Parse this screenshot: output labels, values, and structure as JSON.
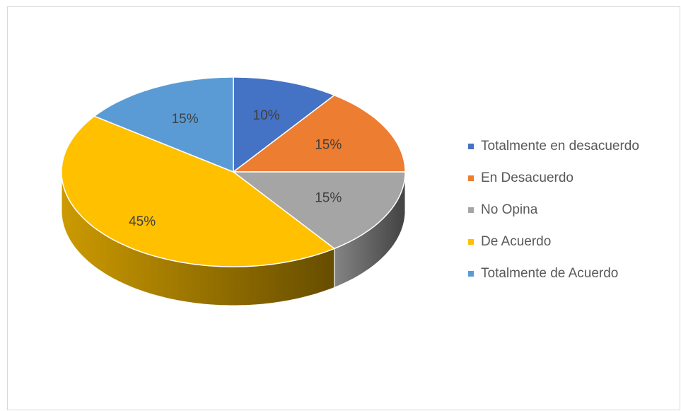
{
  "chart_data": {
    "type": "pie",
    "categories": [
      "Totalmente en desacuerdo",
      "En Desacuerdo",
      "No Opina",
      "De Acuerdo",
      "Totalmente de Acuerdo"
    ],
    "values": [
      10,
      15,
      15,
      45,
      15
    ],
    "value_labels": [
      "10%",
      "15%",
      "15%",
      "45%",
      "15%"
    ],
    "colors": [
      "#4472c4",
      "#ed7d31",
      "#a5a5a5",
      "#ffc000",
      "#5b9bd5"
    ],
    "legend": "right"
  }
}
